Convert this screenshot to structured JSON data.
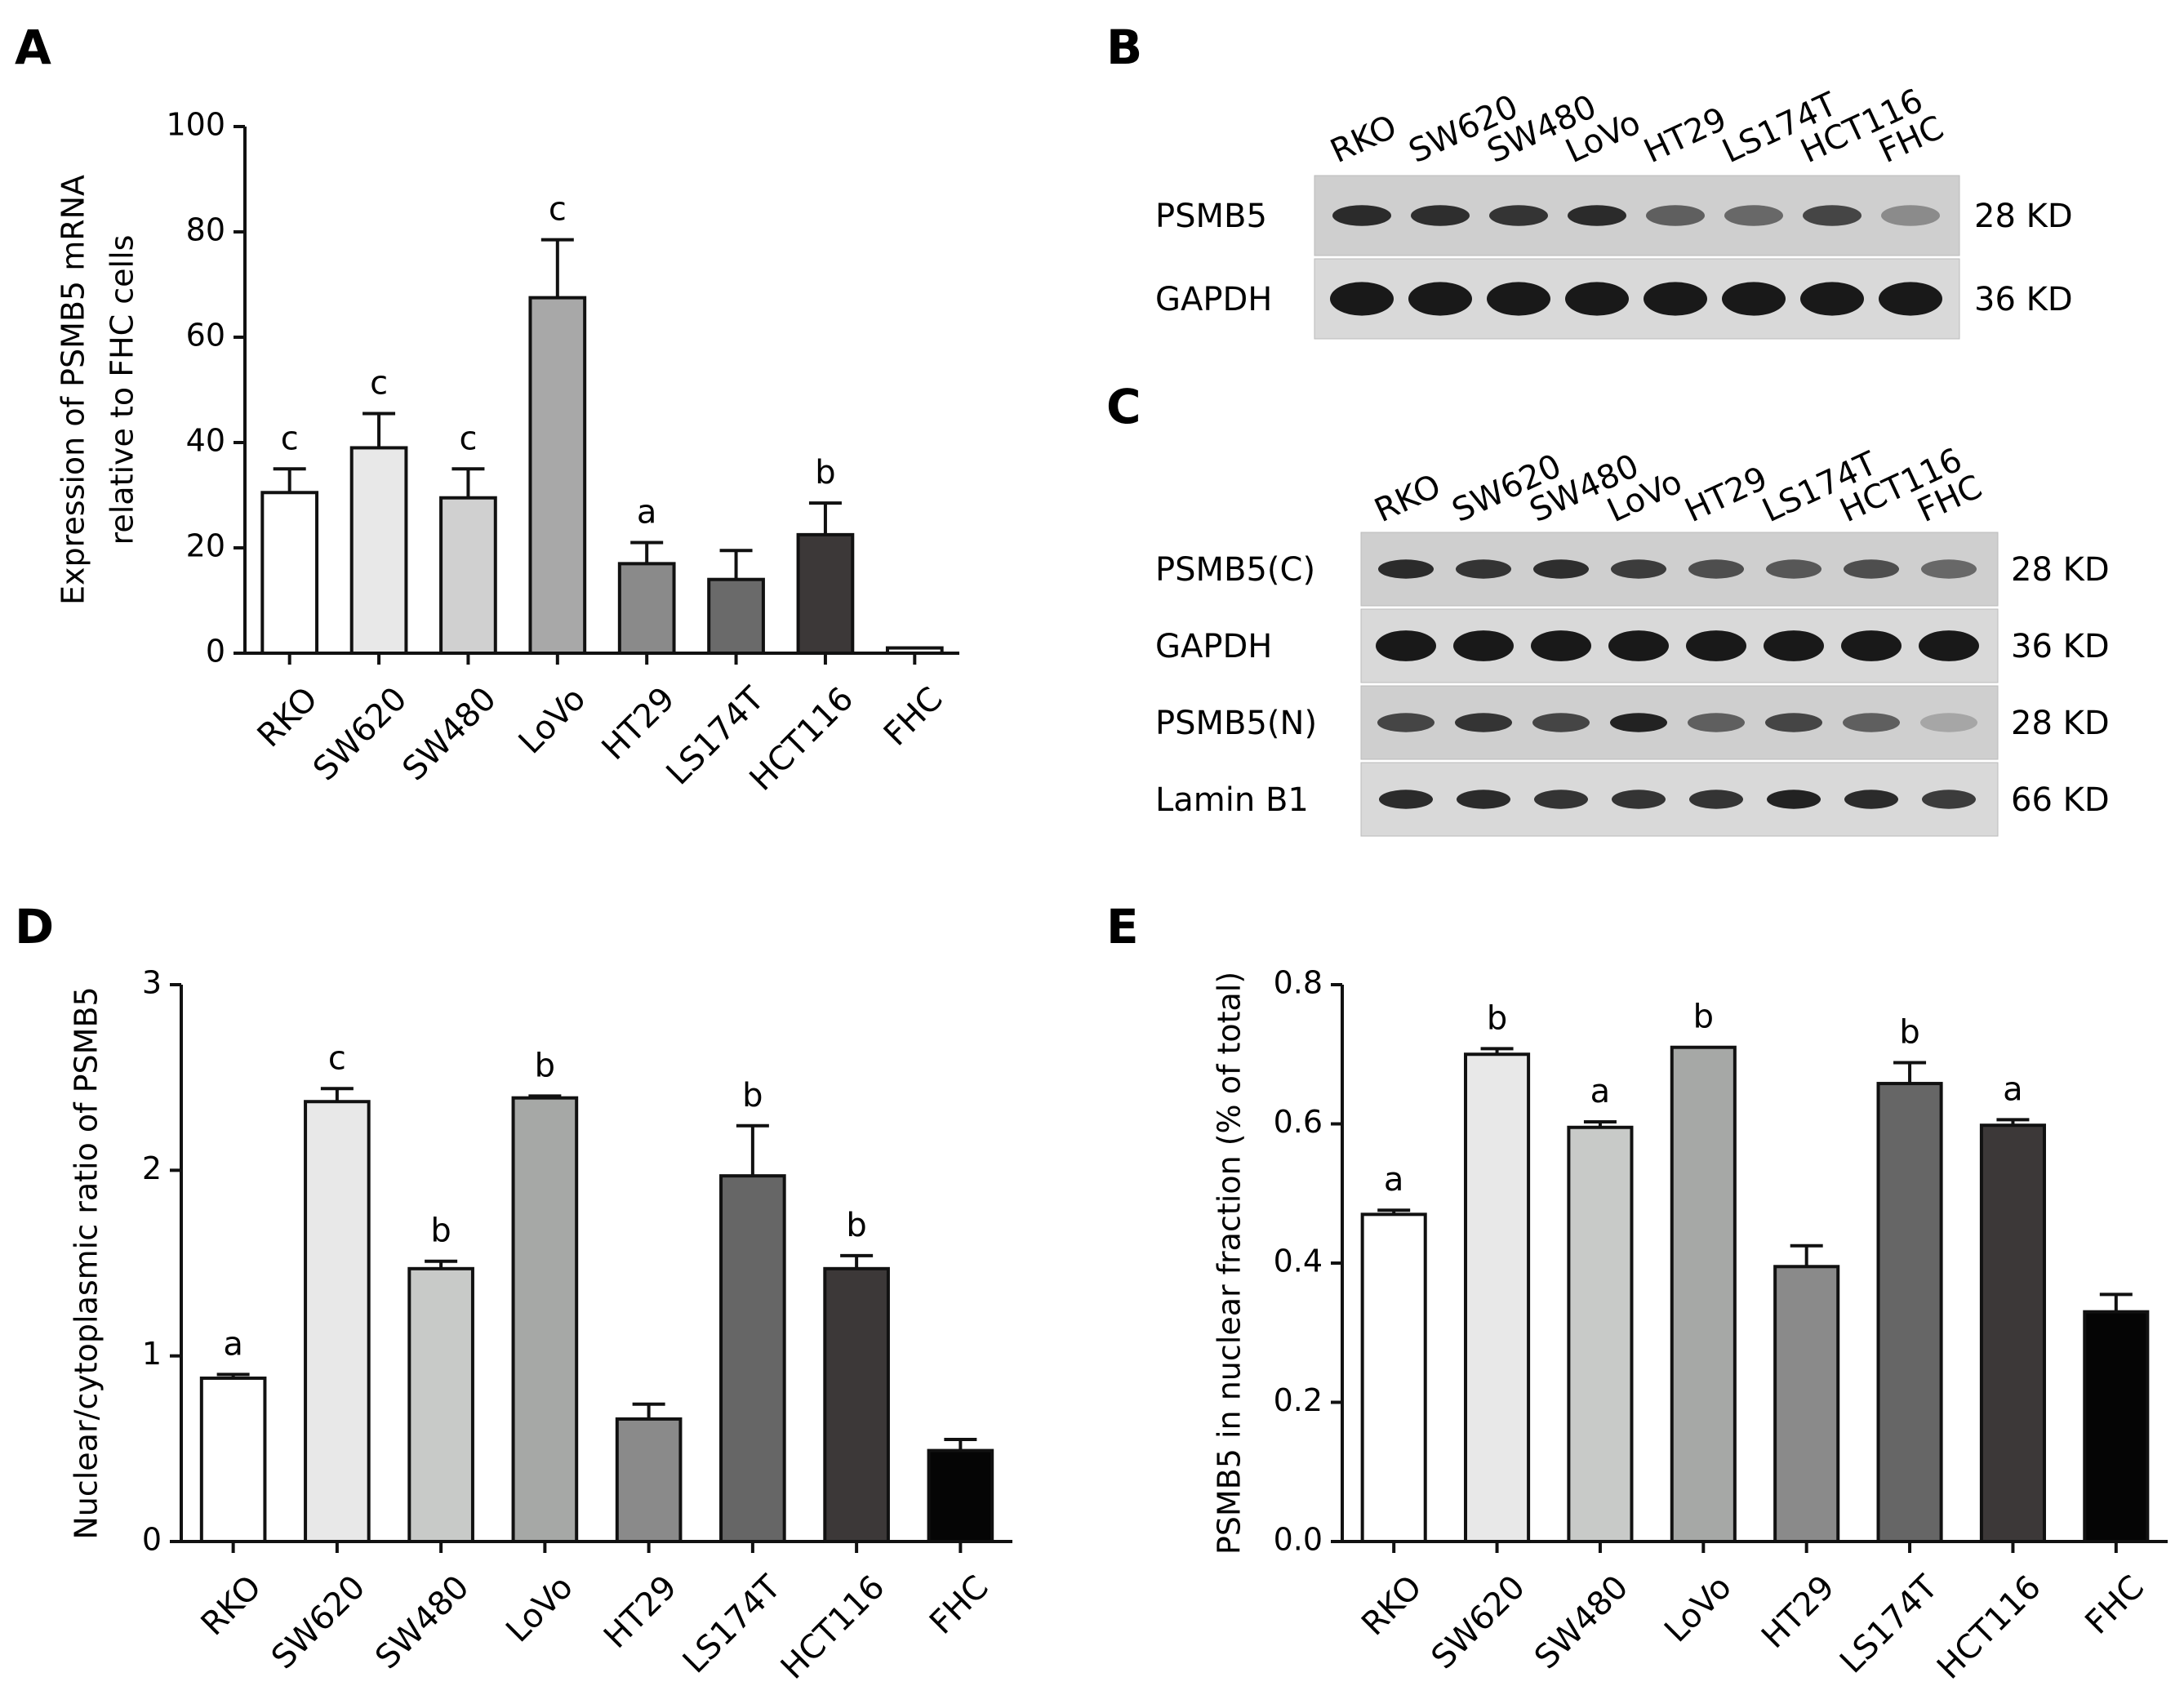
{
  "panels": {
    "A": "A",
    "B": "B",
    "C": "C",
    "D": "D",
    "E": "E"
  },
  "blots": {
    "B": {
      "lanes": [
        "RKO",
        "SW620",
        "SW480",
        "LoVo",
        "HT29",
        "LS174T",
        "HCT116",
        "FHC"
      ],
      "rows": [
        {
          "label": "PSMB5",
          "size": "28 KD"
        },
        {
          "label": "GAPDH",
          "size": "36 KD"
        }
      ]
    },
    "C": {
      "lanes": [
        "RKO",
        "SW620",
        "SW480",
        "LoVo",
        "HT29",
        "LS174T",
        "HCT116",
        "FHC"
      ],
      "rows": [
        {
          "label": "PSMB5(C)",
          "size": "28 KD"
        },
        {
          "label": "GAPDH",
          "size": "36 KD"
        },
        {
          "label": "PSMB5(N)",
          "size": "28 KD"
        },
        {
          "label": "Lamin B1",
          "size": "66 KD"
        }
      ]
    }
  },
  "chart_data": [
    {
      "id": "A",
      "type": "bar",
      "categories": [
        "RKO",
        "SW620",
        "SW480",
        "LoVo",
        "HT29",
        "LS174T",
        "HCT116",
        "FHC"
      ],
      "values": [
        30.5,
        39,
        29.5,
        67.5,
        17,
        14,
        22.5,
        1
      ],
      "errors": [
        4.5,
        6.5,
        5.5,
        11,
        4,
        5.5,
        6,
        0
      ],
      "significance": [
        "c",
        "c",
        "c",
        "c",
        "a",
        "",
        "b",
        ""
      ],
      "ylabel_lines": [
        "Expression of PSMB5 mRNA",
        "relative to FHC cells"
      ],
      "ylim": [
        0,
        100
      ],
      "yticks": [
        "0",
        "20",
        "40",
        "60",
        "80",
        "100"
      ],
      "colors": [
        "#ffffff",
        "#e8e8e8",
        "#d0d0d0",
        "#a8a8a8",
        "#8a8a8a",
        "#6a6a6a",
        "#3c3838",
        "#f2f2f2"
      ]
    },
    {
      "id": "D",
      "type": "bar",
      "categories": [
        "RKO",
        "SW620",
        "SW480",
        "LoVo",
        "HT29",
        "LS174T",
        "HCT116",
        "FHC"
      ],
      "values": [
        0.88,
        2.37,
        1.47,
        2.39,
        0.66,
        1.97,
        1.47,
        0.49
      ],
      "errors": [
        0.02,
        0.07,
        0.04,
        0.01,
        0.08,
        0.27,
        0.07,
        0.06
      ],
      "significance": [
        "a",
        "c",
        "b",
        "b",
        "",
        "b",
        "b",
        ""
      ],
      "ylabel_lines": [
        "Nuclear/cytoplasmic ratio of PSMB5"
      ],
      "ylim": [
        0,
        3
      ],
      "yticks": [
        "0",
        "1",
        "2",
        "3"
      ],
      "colors": [
        "#ffffff",
        "#e8e8e8",
        "#c8cac8",
        "#a6a8a6",
        "#8a8a8a",
        "#666666",
        "#3c3838",
        "#050505"
      ]
    },
    {
      "id": "E",
      "type": "bar",
      "categories": [
        "RKO",
        "SW620",
        "SW480",
        "LoVo",
        "HT29",
        "LS174T",
        "HCT116",
        "FHC"
      ],
      "values": [
        0.47,
        0.7,
        0.595,
        0.71,
        0.395,
        0.658,
        0.598,
        0.33
      ],
      "errors": [
        0.006,
        0.008,
        0.008,
        0.0,
        0.03,
        0.03,
        0.008,
        0.025
      ],
      "significance": [
        "a",
        "b",
        "a",
        "b",
        "",
        "b",
        "a",
        ""
      ],
      "ylabel_lines": [
        "PSMB5 in nuclear fraction (% of total)"
      ],
      "ylim": [
        0,
        0.8
      ],
      "yticks": [
        "0.0",
        "0.2",
        "0.4",
        "0.6",
        "0.8"
      ],
      "colors": [
        "#ffffff",
        "#e8e8e8",
        "#c8cac8",
        "#a6a8a6",
        "#8a8a8a",
        "#666666",
        "#3c3838",
        "#050505"
      ]
    }
  ]
}
